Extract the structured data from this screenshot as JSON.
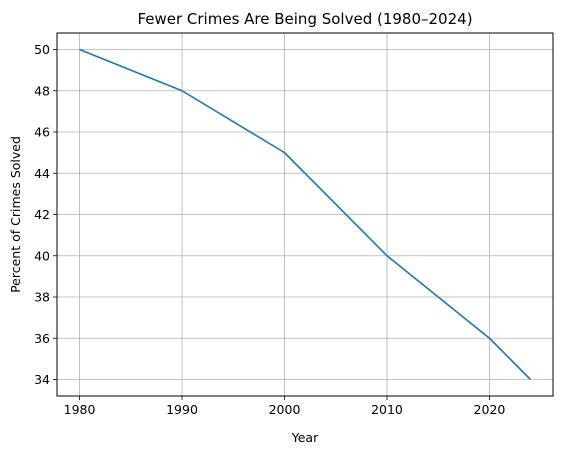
{
  "chart_data": {
    "type": "line",
    "title": "Fewer Crimes Are Being Solved (1980–2024)",
    "xlabel": "Year",
    "ylabel": "Percent of Crimes Solved",
    "x": [
      1980,
      1990,
      2000,
      2010,
      2020,
      2024
    ],
    "series": [
      {
        "values": [
          50,
          48,
          45,
          40,
          36,
          34
        ]
      }
    ],
    "xticks": [
      1980,
      1990,
      2000,
      2010,
      2020
    ],
    "yticks": [
      34,
      36,
      38,
      40,
      42,
      44,
      46,
      48,
      50
    ],
    "xlim": [
      1977.8,
      2026.2
    ],
    "ylim": [
      33.2,
      50.8
    ],
    "grid": true,
    "colors": {
      "line": "#1f77b4",
      "grid": "#b0b0b0",
      "axis": "#000000"
    }
  }
}
